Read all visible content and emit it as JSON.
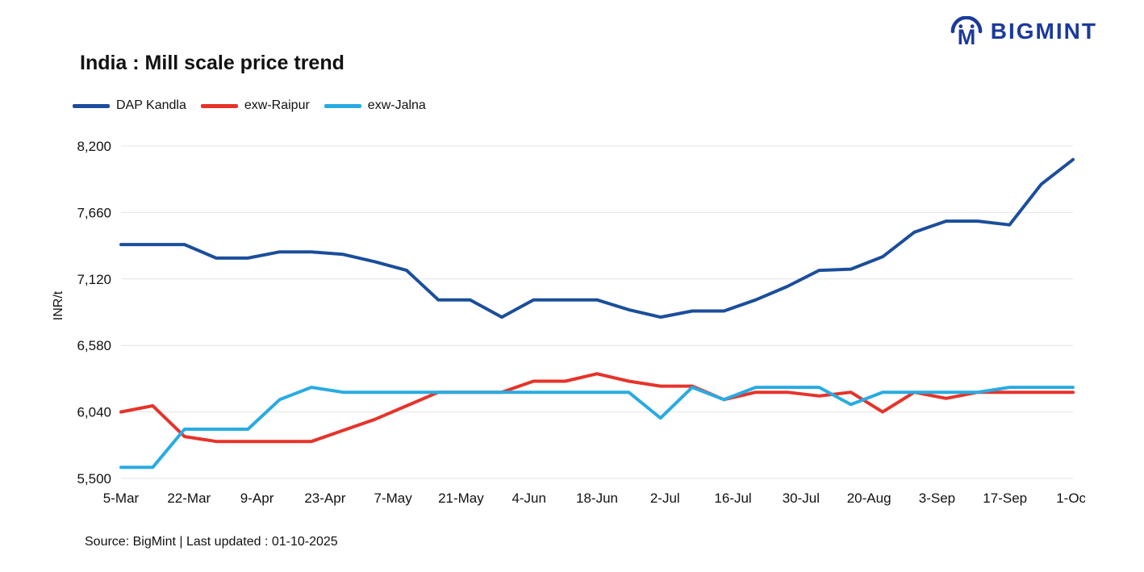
{
  "header": {
    "logo_text": "BIGMINT",
    "logo_color": "#1b3a9b"
  },
  "chart": {
    "title": "India : Mill scale price trend"
  },
  "footer": {
    "source_note": "Source: BigMint | Last updated : 01-10-2025"
  },
  "chart_data": {
    "type": "line",
    "title": "India : Mill scale price trend",
    "xlabel": "",
    "ylabel": "INR/t",
    "ylim": [
      5500,
      8200
    ],
    "yticks": [
      5500,
      6040,
      6580,
      7120,
      7660,
      8200
    ],
    "grid": "horizontal",
    "legend_position": "top-left",
    "xticklabels": [
      "5-Mar",
      "22-Mar",
      "9-Apr",
      "23-Apr",
      "7-May",
      "21-May",
      "4-Jun",
      "18-Jun",
      "2-Jul",
      "16-Jul",
      "30-Jul",
      "20-Aug",
      "3-Sep",
      "17-Sep",
      "1-Oct"
    ],
    "x": [
      "5-Mar",
      "12-Mar",
      "19-Mar",
      "26-Mar",
      "2-Apr",
      "9-Apr",
      "16-Apr",
      "23-Apr",
      "30-Apr",
      "7-May",
      "14-May",
      "21-May",
      "28-May",
      "4-Jun",
      "11-Jun",
      "18-Jun",
      "25-Jun",
      "2-Jul",
      "9-Jul",
      "16-Jul",
      "23-Jul",
      "30-Jul",
      "6-Aug",
      "13-Aug",
      "20-Aug",
      "27-Aug",
      "3-Sep",
      "10-Sep",
      "17-Sep",
      "24-Sep",
      "1-Oct"
    ],
    "series": [
      {
        "name": "DAP Kandla",
        "color": "#1b4e9b",
        "values": [
          7400,
          7400,
          7400,
          7290,
          7290,
          7340,
          7340,
          7320,
          7260,
          7190,
          6950,
          6950,
          6810,
          6950,
          6950,
          6950,
          6870,
          6810,
          6860,
          6860,
          6950,
          7060,
          7190,
          7200,
          7300,
          7500,
          7590,
          7590,
          7560,
          7890,
          8090
        ]
      },
      {
        "name": "exw-Raipur",
        "color": "#e6332a",
        "values": [
          6040,
          6090,
          5840,
          5800,
          5800,
          5800,
          5800,
          5890,
          5980,
          6090,
          6200,
          6200,
          6200,
          6290,
          6290,
          6350,
          6290,
          6250,
          6250,
          6140,
          6200,
          6200,
          6170,
          6200,
          6040,
          6200,
          6150,
          6200,
          6200,
          6200,
          6200
        ]
      },
      {
        "name": "exw-Jalna",
        "color": "#29abe2",
        "values": [
          5590,
          5590,
          5900,
          5900,
          5900,
          6140,
          6240,
          6200,
          6200,
          6200,
          6200,
          6200,
          6200,
          6200,
          6200,
          6200,
          6200,
          5990,
          6240,
          6140,
          6240,
          6240,
          6240,
          6100,
          6200,
          6200,
          6200,
          6200,
          6240,
          6240,
          6240
        ]
      }
    ]
  }
}
